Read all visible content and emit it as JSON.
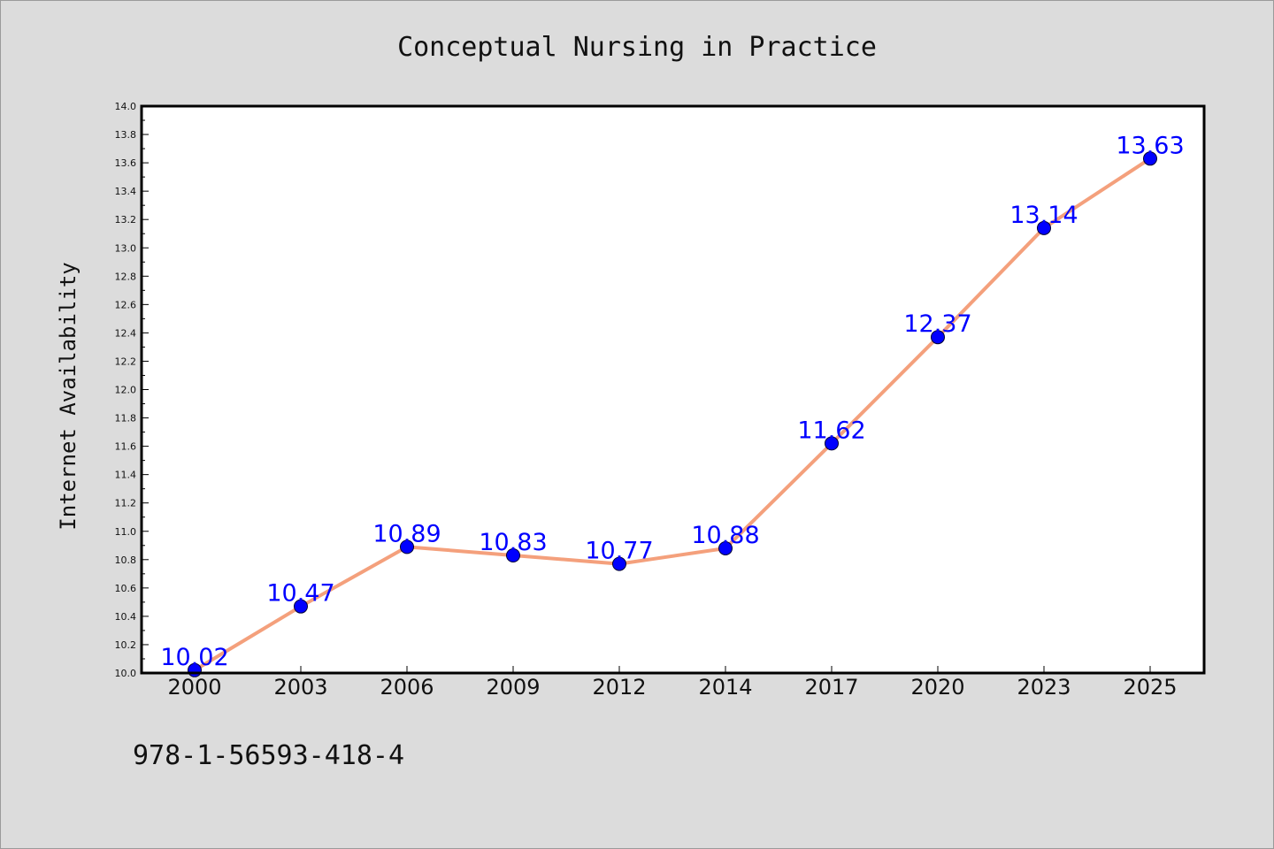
{
  "chart_data": {
    "type": "line",
    "title": "Conceptual Nursing in Practice",
    "xlabel": "",
    "ylabel": "Internet Availability",
    "categories": [
      "2000",
      "2003",
      "2006",
      "2009",
      "2012",
      "2014",
      "2017",
      "2020",
      "2023",
      "2025"
    ],
    "series": [
      {
        "values": [
          10.02,
          10.47,
          10.89,
          10.83,
          10.77,
          10.88,
          11.62,
          12.37,
          13.14,
          13.63
        ],
        "data_labels": [
          "10.02",
          "10.47",
          "10.89",
          "10.83",
          "10.77",
          "10.88",
          "11.62",
          "12.37",
          "13.14",
          "13.63"
        ]
      }
    ],
    "ylim": [
      10.0,
      14.0
    ],
    "yticks": [
      "10.0",
      "10.2",
      "10.4",
      "10.6",
      "10.8",
      "11.0",
      "11.2",
      "11.4",
      "11.6",
      "11.8",
      "12.0",
      "12.2",
      "12.4",
      "12.6",
      "12.8",
      "13.0",
      "13.2",
      "13.4",
      "13.6",
      "13.8",
      "14.0"
    ],
    "grid": false,
    "colors": {
      "line": "#f4a07c",
      "marker": "#0000ff",
      "data_label": "#0000ff",
      "background": "#dcdcdc",
      "plot_area": "#ffffff"
    }
  },
  "footer": {
    "isbn": "978-1-56593-418-4"
  }
}
